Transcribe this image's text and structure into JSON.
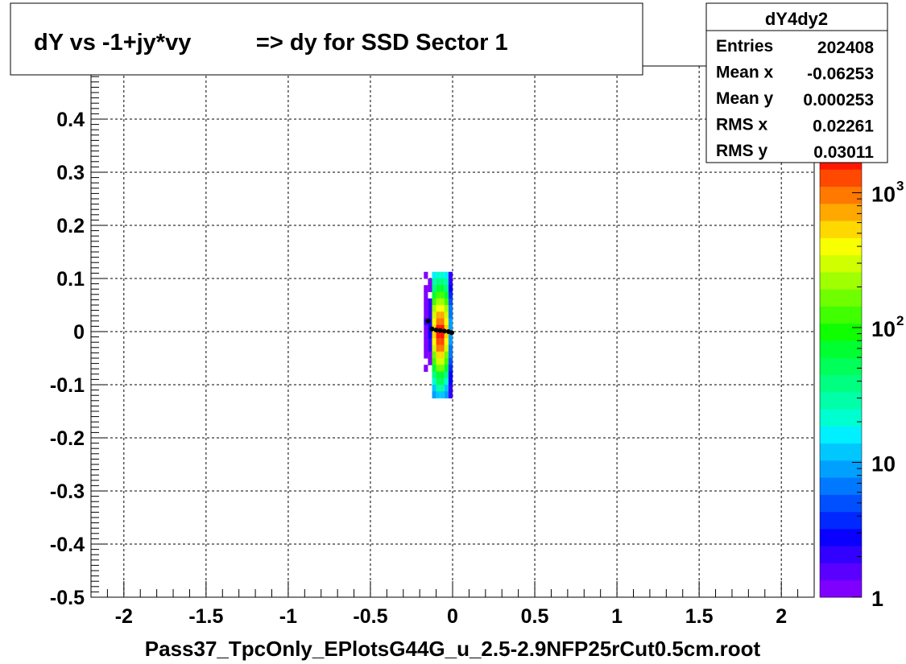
{
  "chart_data": {
    "type": "heatmap",
    "title": "dY vs -1+jy*vy          => dy for SSD Sector 1",
    "xlabel": "Pass37_TpcOnly_EPlotsG44G_u_2.5-2.9NFP25rCut0.5cm.root",
    "ylabel": "",
    "xlim": [
      -2.2,
      2.2
    ],
    "ylim": [
      -0.5,
      0.5
    ],
    "x_ticks": [
      -2,
      -1.5,
      -1,
      -0.5,
      0,
      0.5,
      1,
      1.5,
      2
    ],
    "x_tick_labels": [
      "-2",
      "-1.5",
      "-1",
      "-0.5",
      "0",
      "0.5",
      "1",
      "1.5",
      "2"
    ],
    "y_ticks": [
      -0.5,
      -0.4,
      -0.3,
      -0.2,
      -0.1,
      0,
      0.1,
      0.2,
      0.3,
      0.4
    ],
    "y_tick_labels": [
      "-0.5",
      "-0.4",
      "-0.3",
      "-0.2",
      "-0.1",
      "0",
      "0.1",
      "0.2",
      "0.3",
      "0.4"
    ],
    "grid": true,
    "colorbar": {
      "scale": "log",
      "min": 1,
      "max": 2000,
      "labels": [
        {
          "value": 1,
          "base": "1",
          "exp": ""
        },
        {
          "value": 10,
          "base": "10",
          "exp": ""
        },
        {
          "value": 100,
          "base": "10",
          "exp": "2"
        },
        {
          "value": 1000,
          "base": "10",
          "exp": "3"
        }
      ],
      "colors": [
        "#7f00ff",
        "#5a00ff",
        "#3200ff",
        "#0a00ff",
        "#0028ff",
        "#0050ff",
        "#0078ff",
        "#00a0ff",
        "#00c8ff",
        "#00f0ff",
        "#00ffd0",
        "#00ffa8",
        "#00ff80",
        "#00ff58",
        "#00ff30",
        "#10ff00",
        "#40ff00",
        "#70ff00",
        "#a0ff00",
        "#d0ff00",
        "#f8ff00",
        "#ffd800",
        "#ffa800",
        "#ff7800",
        "#ff4800",
        "#ff1800"
      ]
    },
    "cells_dx": 0.025,
    "cells_dy": 0.0125,
    "cells": [
      {
        "x": -0.1625,
        "y": 0.10625,
        "v": 1
      },
      {
        "x": -0.1625,
        "y": 0.08125,
        "v": 1
      },
      {
        "x": -0.1625,
        "y": 0.06875,
        "v": 1
      },
      {
        "x": -0.1625,
        "y": 0.05625,
        "v": 1
      },
      {
        "x": -0.1625,
        "y": 0.04375,
        "v": 1
      },
      {
        "x": -0.1625,
        "y": 0.03125,
        "v": 1
      },
      {
        "x": -0.1625,
        "y": 0.01875,
        "v": 2
      },
      {
        "x": -0.1625,
        "y": 0.00625,
        "v": 1
      },
      {
        "x": -0.1625,
        "y": -0.00625,
        "v": 1
      },
      {
        "x": -0.1625,
        "y": -0.01875,
        "v": 1
      },
      {
        "x": -0.1625,
        "y": -0.03125,
        "v": 1
      },
      {
        "x": -0.1625,
        "y": -0.04375,
        "v": 1
      },
      {
        "x": -0.1625,
        "y": -0.06875,
        "v": 1
      },
      {
        "x": -0.1375,
        "y": 0.09375,
        "v": 1
      },
      {
        "x": -0.1375,
        "y": 0.08125,
        "v": 1
      },
      {
        "x": -0.1375,
        "y": 0.05625,
        "v": 2
      },
      {
        "x": -0.1375,
        "y": 0.04375,
        "v": 2
      },
      {
        "x": -0.1375,
        "y": 0.03125,
        "v": 2
      },
      {
        "x": -0.1375,
        "y": 0.01875,
        "v": 3
      },
      {
        "x": -0.1375,
        "y": 0.00625,
        "v": 3
      },
      {
        "x": -0.1375,
        "y": -0.00625,
        "v": 3
      },
      {
        "x": -0.1375,
        "y": -0.01875,
        "v": 2
      },
      {
        "x": -0.1375,
        "y": -0.03125,
        "v": 2
      },
      {
        "x": -0.1375,
        "y": -0.04375,
        "v": 1
      },
      {
        "x": -0.1375,
        "y": -0.05625,
        "v": 1
      },
      {
        "x": -0.1125,
        "y": 0.10625,
        "v": 15
      },
      {
        "x": -0.1125,
        "y": 0.09375,
        "v": 25
      },
      {
        "x": -0.1125,
        "y": 0.08125,
        "v": 40
      },
      {
        "x": -0.1125,
        "y": 0.06875,
        "v": 70
      },
      {
        "x": -0.1125,
        "y": 0.05625,
        "v": 120
      },
      {
        "x": -0.1125,
        "y": 0.04375,
        "v": 200
      },
      {
        "x": -0.1125,
        "y": 0.03125,
        "v": 320
      },
      {
        "x": -0.1125,
        "y": 0.01875,
        "v": 450
      },
      {
        "x": -0.1125,
        "y": 0.00625,
        "v": 520
      },
      {
        "x": -0.1125,
        "y": -0.00625,
        "v": 500
      },
      {
        "x": -0.1125,
        "y": -0.01875,
        "v": 420
      },
      {
        "x": -0.1125,
        "y": -0.03125,
        "v": 300
      },
      {
        "x": -0.1125,
        "y": -0.04375,
        "v": 180
      },
      {
        "x": -0.1125,
        "y": -0.05625,
        "v": 110
      },
      {
        "x": -0.1125,
        "y": -0.06875,
        "v": 60
      },
      {
        "x": -0.1125,
        "y": -0.08125,
        "v": 35
      },
      {
        "x": -0.1125,
        "y": -0.09375,
        "v": 20
      },
      {
        "x": -0.1125,
        "y": -0.10625,
        "v": 12
      },
      {
        "x": -0.1125,
        "y": -0.11875,
        "v": 8
      },
      {
        "x": -0.0875,
        "y": 0.10625,
        "v": 20
      },
      {
        "x": -0.0875,
        "y": 0.09375,
        "v": 35
      },
      {
        "x": -0.0875,
        "y": 0.08125,
        "v": 60
      },
      {
        "x": -0.0875,
        "y": 0.06875,
        "v": 110
      },
      {
        "x": -0.0875,
        "y": 0.05625,
        "v": 200
      },
      {
        "x": -0.0875,
        "y": 0.04375,
        "v": 380
      },
      {
        "x": -0.0875,
        "y": 0.03125,
        "v": 650
      },
      {
        "x": -0.0875,
        "y": 0.01875,
        "v": 1000
      },
      {
        "x": -0.0875,
        "y": 0.00625,
        "v": 1500
      },
      {
        "x": -0.0875,
        "y": -0.00625,
        "v": 1600
      },
      {
        "x": -0.0875,
        "y": -0.01875,
        "v": 1300
      },
      {
        "x": -0.0875,
        "y": -0.03125,
        "v": 850
      },
      {
        "x": -0.0875,
        "y": -0.04375,
        "v": 500
      },
      {
        "x": -0.0875,
        "y": -0.05625,
        "v": 280
      },
      {
        "x": -0.0875,
        "y": -0.06875,
        "v": 150
      },
      {
        "x": -0.0875,
        "y": -0.08125,
        "v": 80
      },
      {
        "x": -0.0875,
        "y": -0.09375,
        "v": 45
      },
      {
        "x": -0.0875,
        "y": -0.10625,
        "v": 25
      },
      {
        "x": -0.0875,
        "y": -0.11875,
        "v": 12
      },
      {
        "x": -0.0625,
        "y": 0.10625,
        "v": 20
      },
      {
        "x": -0.0625,
        "y": 0.09375,
        "v": 35
      },
      {
        "x": -0.0625,
        "y": 0.08125,
        "v": 60
      },
      {
        "x": -0.0625,
        "y": 0.06875,
        "v": 110
      },
      {
        "x": -0.0625,
        "y": 0.05625,
        "v": 200
      },
      {
        "x": -0.0625,
        "y": 0.04375,
        "v": 380
      },
      {
        "x": -0.0625,
        "y": 0.03125,
        "v": 650
      },
      {
        "x": -0.0625,
        "y": 0.01875,
        "v": 1000
      },
      {
        "x": -0.0625,
        "y": 0.00625,
        "v": 1500
      },
      {
        "x": -0.0625,
        "y": -0.00625,
        "v": 1600
      },
      {
        "x": -0.0625,
        "y": -0.01875,
        "v": 1300
      },
      {
        "x": -0.0625,
        "y": -0.03125,
        "v": 850
      },
      {
        "x": -0.0625,
        "y": -0.04375,
        "v": 500
      },
      {
        "x": -0.0625,
        "y": -0.05625,
        "v": 280
      },
      {
        "x": -0.0625,
        "y": -0.06875,
        "v": 150
      },
      {
        "x": -0.0625,
        "y": -0.08125,
        "v": 80
      },
      {
        "x": -0.0625,
        "y": -0.09375,
        "v": 45
      },
      {
        "x": -0.0625,
        "y": -0.10625,
        "v": 25
      },
      {
        "x": -0.0625,
        "y": -0.11875,
        "v": 12
      },
      {
        "x": -0.0375,
        "y": 0.10625,
        "v": 15
      },
      {
        "x": -0.0375,
        "y": 0.09375,
        "v": 25
      },
      {
        "x": -0.0375,
        "y": 0.08125,
        "v": 40
      },
      {
        "x": -0.0375,
        "y": 0.06875,
        "v": 70
      },
      {
        "x": -0.0375,
        "y": 0.05625,
        "v": 120
      },
      {
        "x": -0.0375,
        "y": 0.04375,
        "v": 200
      },
      {
        "x": -0.0375,
        "y": 0.03125,
        "v": 320
      },
      {
        "x": -0.0375,
        "y": 0.01875,
        "v": 450
      },
      {
        "x": -0.0375,
        "y": 0.00625,
        "v": 520
      },
      {
        "x": -0.0375,
        "y": -0.00625,
        "v": 500
      },
      {
        "x": -0.0375,
        "y": -0.01875,
        "v": 420
      },
      {
        "x": -0.0375,
        "y": -0.03125,
        "v": 300
      },
      {
        "x": -0.0375,
        "y": -0.04375,
        "v": 180
      },
      {
        "x": -0.0375,
        "y": -0.05625,
        "v": 110
      },
      {
        "x": -0.0375,
        "y": -0.06875,
        "v": 60
      },
      {
        "x": -0.0375,
        "y": -0.08125,
        "v": 35
      },
      {
        "x": -0.0375,
        "y": -0.09375,
        "v": 20
      },
      {
        "x": -0.0375,
        "y": -0.10625,
        "v": 12
      },
      {
        "x": -0.0375,
        "y": -0.11875,
        "v": 8
      },
      {
        "x": -0.0125,
        "y": 0.10625,
        "v": 2
      },
      {
        "x": -0.0125,
        "y": 0.09375,
        "v": 2
      },
      {
        "x": -0.0125,
        "y": 0.08125,
        "v": 3
      },
      {
        "x": -0.0125,
        "y": 0.06875,
        "v": 4
      },
      {
        "x": -0.0125,
        "y": 0.05625,
        "v": 5
      },
      {
        "x": -0.0125,
        "y": 0.04375,
        "v": 6
      },
      {
        "x": -0.0125,
        "y": 0.03125,
        "v": 7
      },
      {
        "x": -0.0125,
        "y": 0.01875,
        "v": 8
      },
      {
        "x": -0.0125,
        "y": 0.00625,
        "v": 9
      },
      {
        "x": -0.0125,
        "y": -0.00625,
        "v": 9
      },
      {
        "x": -0.0125,
        "y": -0.01875,
        "v": 8
      },
      {
        "x": -0.0125,
        "y": -0.03125,
        "v": 7
      },
      {
        "x": -0.0125,
        "y": -0.04375,
        "v": 6
      },
      {
        "x": -0.0125,
        "y": -0.05625,
        "v": 5
      },
      {
        "x": -0.0125,
        "y": -0.06875,
        "v": 4
      },
      {
        "x": -0.0125,
        "y": -0.08125,
        "v": 3
      },
      {
        "x": -0.0125,
        "y": -0.09375,
        "v": 3
      },
      {
        "x": -0.0125,
        "y": -0.10625,
        "v": 2
      },
      {
        "x": -0.0125,
        "y": -0.11875,
        "v": 2
      }
    ],
    "profile_points": [
      {
        "x": -0.15,
        "y": 0.02
      },
      {
        "x": -0.125,
        "y": 0.005
      },
      {
        "x": -0.1,
        "y": 0.003
      },
      {
        "x": -0.075,
        "y": 0.002
      },
      {
        "x": -0.05,
        "y": 0.001
      },
      {
        "x": -0.025,
        "y": 0.0
      },
      {
        "x": -0.005,
        "y": -0.002
      }
    ],
    "stats_box": {
      "title": "dY4dy2",
      "rows": [
        {
          "label": "Entries",
          "value": "202408"
        },
        {
          "label": "Mean x",
          "value": "-0.06253"
        },
        {
          "label": "Mean y",
          "value": "0.000253"
        },
        {
          "label": "RMS x",
          "value": "0.02261"
        },
        {
          "label": "RMS y",
          "value": "0.03011"
        }
      ]
    }
  }
}
